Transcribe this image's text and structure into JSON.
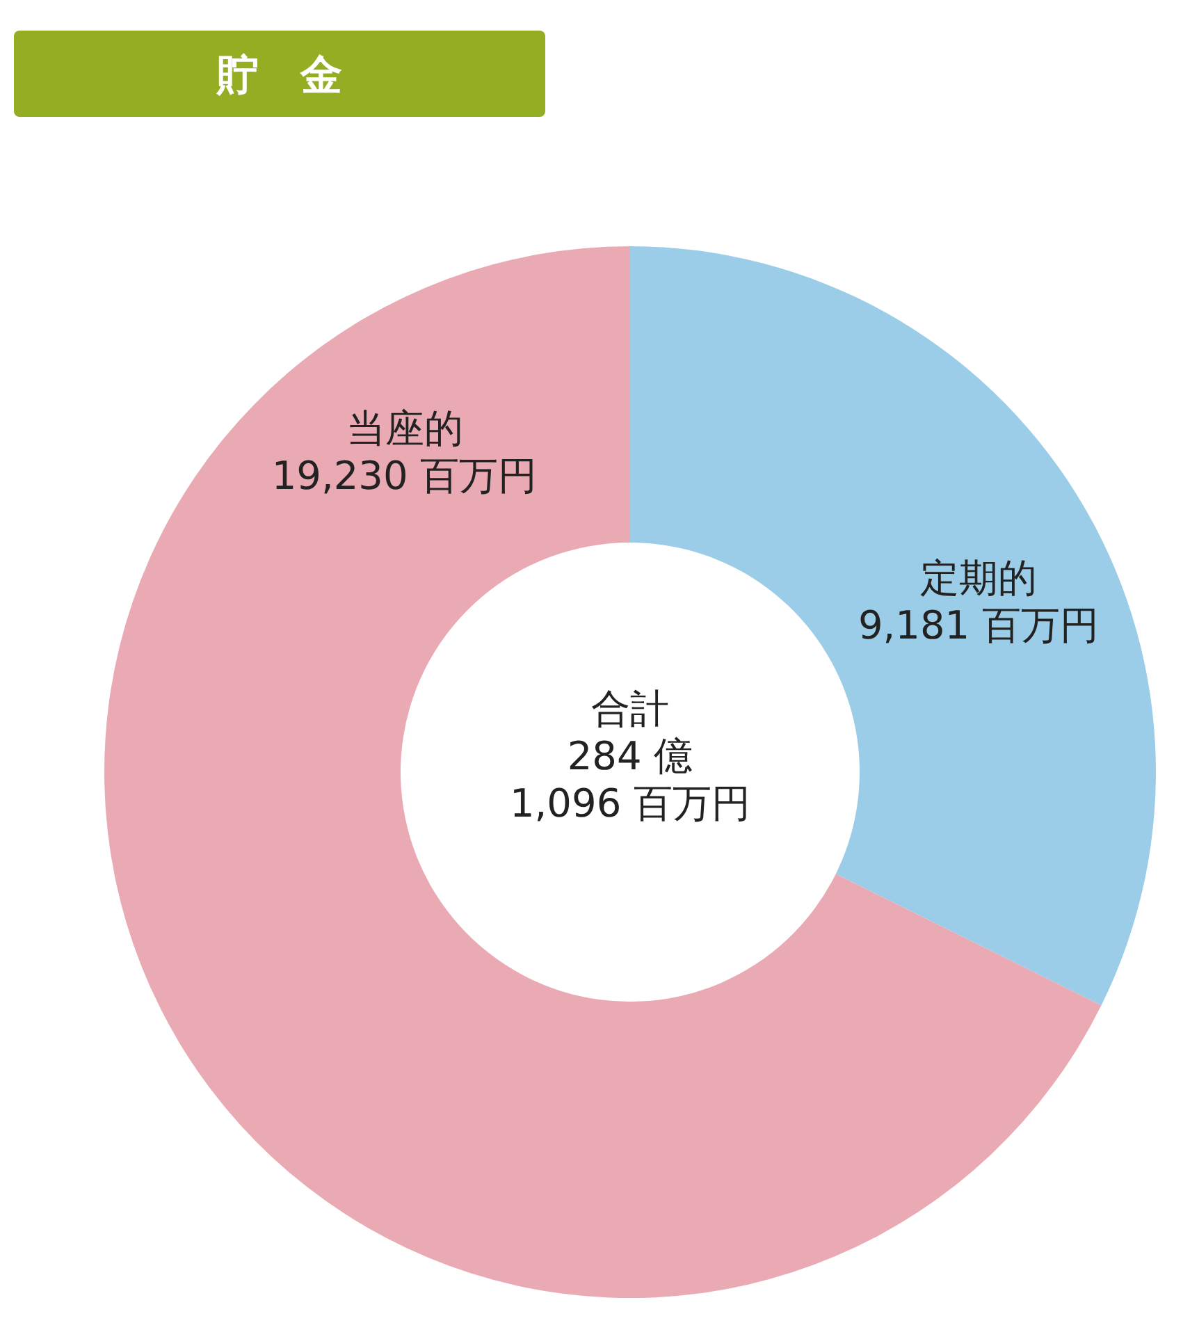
{
  "chart_data": {
    "type": "donut",
    "title": "貯　金",
    "categories": [
      "定期的",
      "当座的"
    ],
    "values": [
      9181,
      19230
    ],
    "colors": [
      "#9bcde8",
      "#eaaab4"
    ],
    "value_labels": [
      "9,181 百万円",
      "19,230 百万円"
    ],
    "annotations": [
      "合計\n284 億\n1,096 百万円"
    ]
  }
}
